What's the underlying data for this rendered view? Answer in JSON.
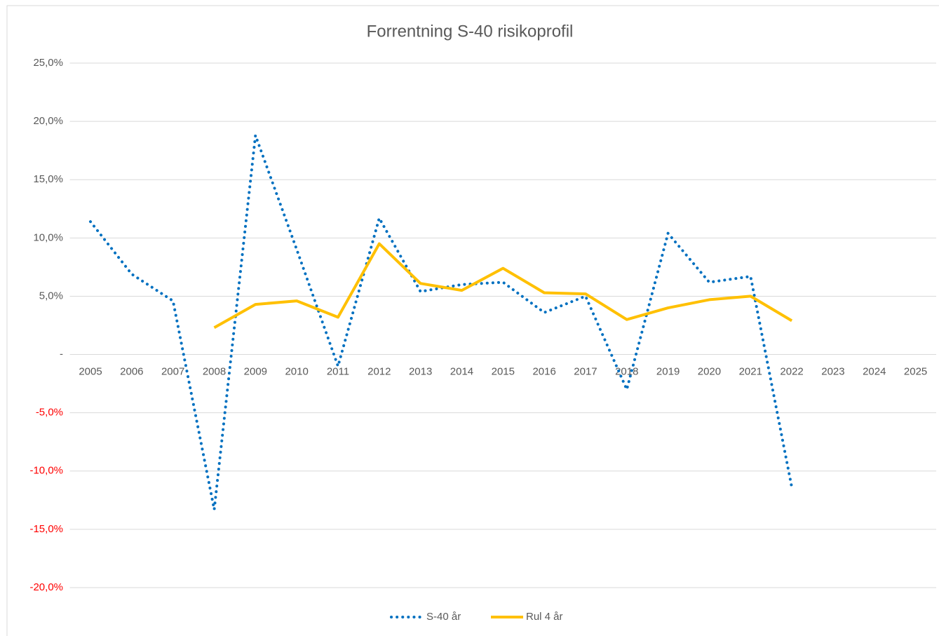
{
  "chart_data": {
    "type": "line",
    "title": "Forrentning S-40 risikoprofil",
    "categories": [
      "2005",
      "2006",
      "2007",
      "2008",
      "2009",
      "2010",
      "2011",
      "2012",
      "2013",
      "2014",
      "2015",
      "2016",
      "2017",
      "2018",
      "2019",
      "2020",
      "2021",
      "2022",
      "2023",
      "2024",
      "2025"
    ],
    "series": [
      {
        "name": "S-40 år",
        "color": "#0070c0",
        "dash": "dotted",
        "values": [
          11.4,
          6.9,
          4.6,
          -13.3,
          18.8,
          9.0,
          -1.0,
          11.7,
          5.4,
          6.0,
          6.2,
          3.6,
          5.0,
          -3.0,
          10.4,
          6.2,
          6.7,
          -11.4,
          null,
          null,
          null
        ]
      },
      {
        "name": "Rul 4 år",
        "color": "#ffc000",
        "dash": "solid",
        "values": [
          null,
          null,
          null,
          2.3,
          4.3,
          4.6,
          3.2,
          9.5,
          6.1,
          5.5,
          7.4,
          5.3,
          5.2,
          3.0,
          4.0,
          4.7,
          5.0,
          2.9,
          null,
          null,
          null
        ]
      }
    ],
    "ylim": [
      -22.5,
      25
    ],
    "yticks": [
      {
        "value": -20,
        "label": "-20,0%"
      },
      {
        "value": -15,
        "label": "-15,0%"
      },
      {
        "value": -10,
        "label": "-10,0%"
      },
      {
        "value": -5,
        "label": "-5,0%"
      },
      {
        "value": 0,
        "label": "-"
      },
      {
        "value": 5,
        "label": "5,0%"
      },
      {
        "value": 10,
        "label": "10,0%"
      },
      {
        "value": 15,
        "label": "15,0%"
      },
      {
        "value": 20,
        "label": "20,0%"
      },
      {
        "value": 25,
        "label": "25,0%"
      }
    ],
    "negative_tick_color": "#ff0000",
    "grid": true,
    "legend": "bottom"
  }
}
